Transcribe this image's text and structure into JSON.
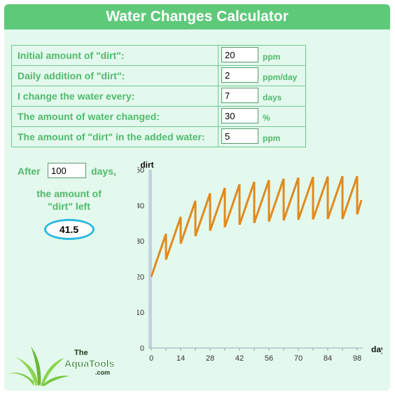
{
  "title": "Water Changes Calculator",
  "params": [
    {
      "label": "Initial amount of \"dirt\":",
      "value": "20",
      "unit": "ppm"
    },
    {
      "label": "Daily addition of \"dirt\":",
      "value": "2",
      "unit": "ppm/day"
    },
    {
      "label": "I change the water every:",
      "value": "7",
      "unit": "days"
    },
    {
      "label": "The amount of water changed:",
      "value": "30",
      "unit": "%"
    },
    {
      "label": "The amount of \"dirt\" in the added water:",
      "value": "5",
      "unit": "ppm"
    }
  ],
  "result": {
    "after_label": "After",
    "days_value": "100",
    "days_label": "days,",
    "amount_line1": "the amount of",
    "amount_line2": "\"dirt\" left",
    "value": "41.5"
  },
  "logo": {
    "line1": "The",
    "line2": "AquaTools",
    "line3": ".com"
  },
  "colors": {
    "accent": "#5fc97a",
    "text": "#4fba6b",
    "line": "#e08a1e",
    "axis": "#c4d2dc",
    "oval": "#2bb8e0"
  },
  "chart_data": {
    "type": "line",
    "xlabel": "days",
    "ylabel": "dirt",
    "xlim": [
      0,
      100
    ],
    "ylim": [
      0,
      50
    ],
    "y_ticks": [
      0,
      10,
      20,
      30,
      40,
      50
    ],
    "x_ticks": [
      0,
      7,
      14,
      21,
      28,
      35,
      42,
      49,
      56,
      63,
      70,
      77,
      84,
      91,
      98
    ],
    "grid": false,
    "x": [
      0,
      7,
      7,
      14,
      14,
      21,
      21,
      28,
      28,
      35,
      35,
      42,
      42,
      49,
      49,
      56,
      56,
      63,
      63,
      70,
      70,
      77,
      77,
      84,
      84,
      91,
      91,
      98,
      98,
      100
    ],
    "values": [
      20,
      32,
      24.8,
      36.8,
      29.3,
      41.3,
      31.4,
      43.4,
      32.9,
      44.9,
      33.9,
      45.9,
      34.6,
      46.6,
      35.1,
      47.1,
      35.5,
      47.5,
      35.8,
      47.8,
      36.0,
      48.0,
      36.1,
      48.1,
      36.2,
      48.2,
      36.2,
      48.2,
      37.5,
      41.5
    ]
  }
}
